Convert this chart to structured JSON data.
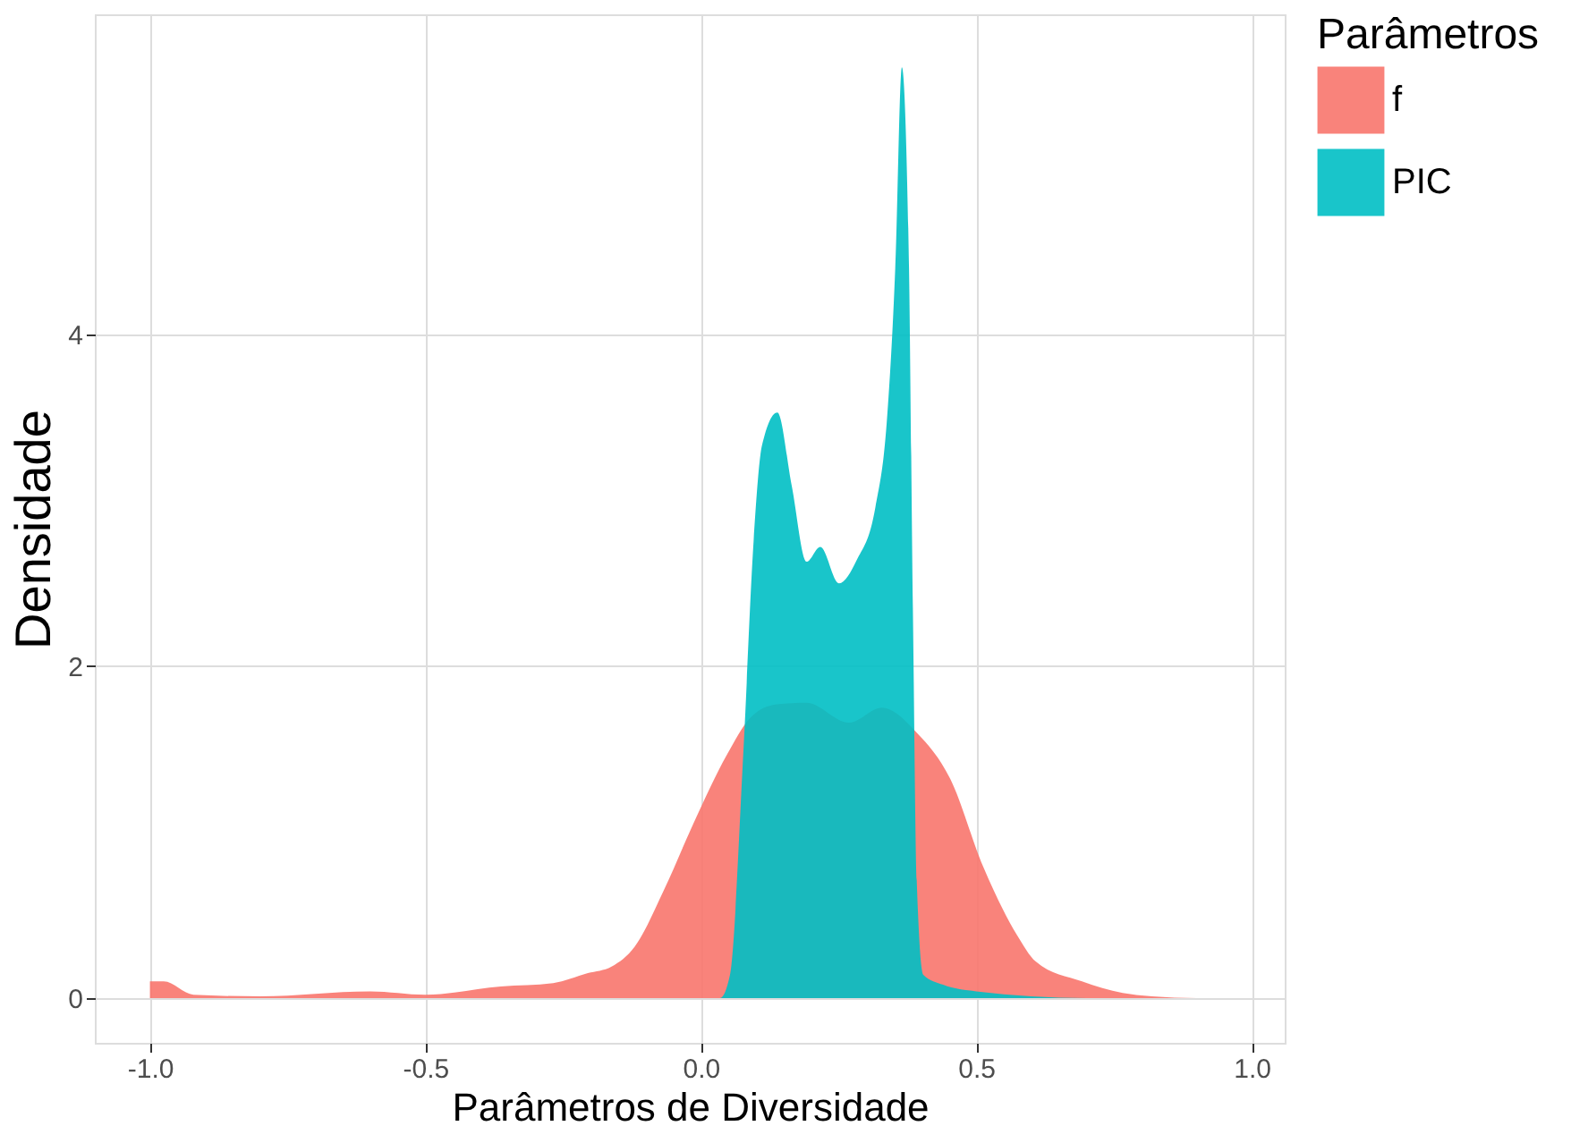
{
  "chart_data": {
    "type": "area",
    "xlabel": "Parâmetros de Diversidade",
    "ylabel": "Densidade",
    "legend_title": "Parâmetros",
    "xlim": [
      -1.1,
      1.06
    ],
    "ylim": [
      -0.27,
      5.93
    ],
    "xticks": [
      {
        "value": -1.0,
        "label": "-1.0"
      },
      {
        "value": -0.5,
        "label": "-0.5"
      },
      {
        "value": 0.0,
        "label": "0.0"
      },
      {
        "value": 0.5,
        "label": "0.5"
      },
      {
        "value": 1.0,
        "label": "1.0"
      }
    ],
    "yticks": [
      0,
      2,
      4
    ],
    "grid": true,
    "legend": "right",
    "series": [
      {
        "name": "f",
        "color": "#f8766d",
        "x": [
          -1.0,
          -0.975,
          -0.921,
          -0.8,
          -0.6,
          -0.5,
          -0.363,
          -0.268,
          -0.205,
          -0.162,
          -0.12,
          -0.067,
          -0.015,
          0.048,
          0.09,
          0.138,
          0.192,
          0.269,
          0.329,
          0.392,
          0.453,
          0.513,
          0.574,
          0.608,
          0.692,
          0.766,
          0.819,
          0.9,
          0.961
        ],
        "values": [
          0.1,
          0.1,
          0.02,
          0.01,
          0.04,
          0.02,
          0.07,
          0.09,
          0.15,
          0.19,
          0.31,
          0.65,
          1.04,
          1.47,
          1.69,
          1.77,
          1.78,
          1.66,
          1.75,
          1.6,
          1.32,
          0.79,
          0.38,
          0.22,
          0.1,
          0.03,
          0.01,
          0.0,
          0.0
        ]
      },
      {
        "name": "PIC",
        "color": "#00bfc4",
        "x": [
          -1.0,
          0.0,
          0.035,
          0.053,
          0.078,
          0.096,
          0.111,
          0.139,
          0.165,
          0.192,
          0.217,
          0.251,
          0.283,
          0.317,
          0.338,
          0.353,
          0.365,
          0.378,
          0.385,
          0.392,
          0.404,
          0.44,
          0.5,
          0.7,
          0.961
        ],
        "values": [
          0.0,
          0.0,
          0.0,
          0.14,
          1.53,
          2.76,
          3.33,
          3.53,
          3.09,
          2.63,
          2.72,
          2.5,
          2.64,
          2.96,
          3.49,
          4.4,
          5.61,
          4.4,
          2.35,
          0.71,
          0.14,
          0.08,
          0.04,
          0.0,
          0.0
        ]
      }
    ]
  }
}
